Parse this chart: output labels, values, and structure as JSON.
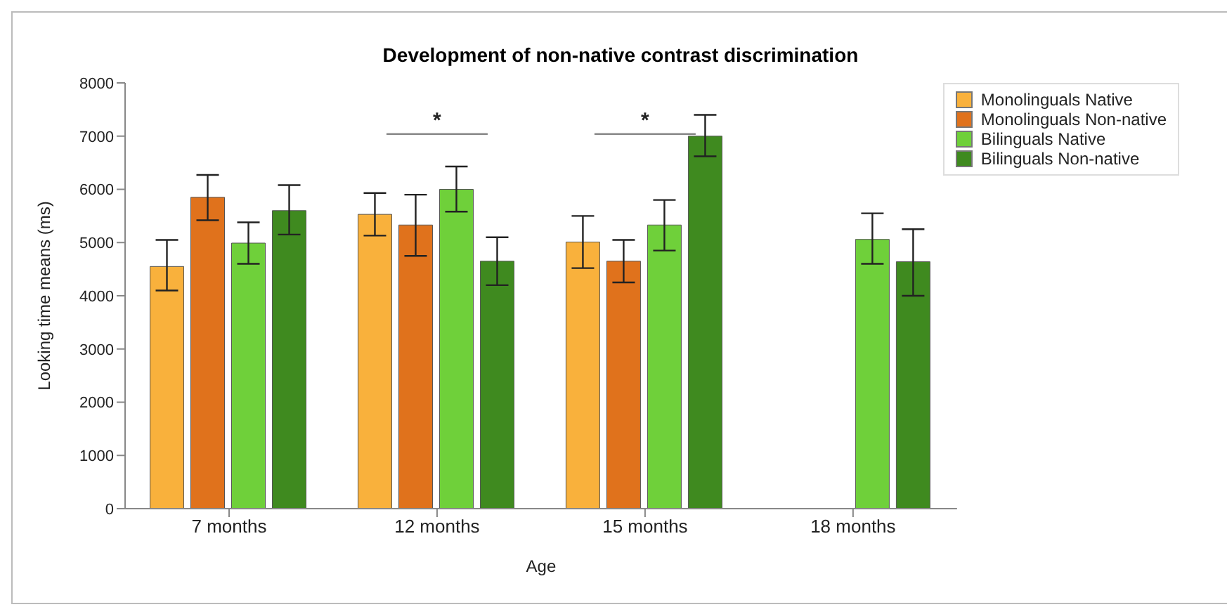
{
  "chart_data": {
    "type": "bar",
    "title": "Development of non-native contrast discrimination",
    "xlabel": "Age",
    "ylabel": "Looking time means (ms)",
    "categories": [
      "7 months",
      "12 months",
      "15 months",
      "18 months"
    ],
    "series": [
      {
        "name": "Monolinguals Native",
        "color": "#f9b13c",
        "values": [
          4550,
          5530,
          5010,
          null
        ],
        "errors": [
          [
            4100,
            5050
          ],
          [
            5130,
            5930
          ],
          [
            4520,
            5500
          ],
          null
        ]
      },
      {
        "name": "Monolinguals Non-native",
        "color": "#e0721c",
        "values": [
          5850,
          5330,
          4650,
          null
        ],
        "errors": [
          [
            5420,
            6270
          ],
          [
            4750,
            5900
          ],
          [
            4250,
            5050
          ],
          null
        ]
      },
      {
        "name": "Bilinguals Native",
        "color": "#6fd03a",
        "values": [
          4990,
          6000,
          5330,
          5060
        ],
        "errors": [
          [
            4600,
            5380
          ],
          [
            5580,
            6430
          ],
          [
            4850,
            5800
          ],
          [
            4600,
            5550
          ]
        ]
      },
      {
        "name": "Bilinguals Non-native",
        "color": "#3f8a1f",
        "values": [
          5600,
          4650,
          7000,
          4640
        ],
        "errors": [
          [
            5150,
            6080
          ],
          [
            4200,
            5100
          ],
          [
            6620,
            7400
          ],
          [
            4000,
            5250
          ]
        ]
      }
    ],
    "ylim": [
      0,
      8000
    ],
    "yticks": [
      0,
      1000,
      2000,
      3000,
      4000,
      5000,
      6000,
      7000,
      8000
    ],
    "grid": false,
    "legend": "top right",
    "annotations": [
      "*",
      "*"
    ]
  }
}
